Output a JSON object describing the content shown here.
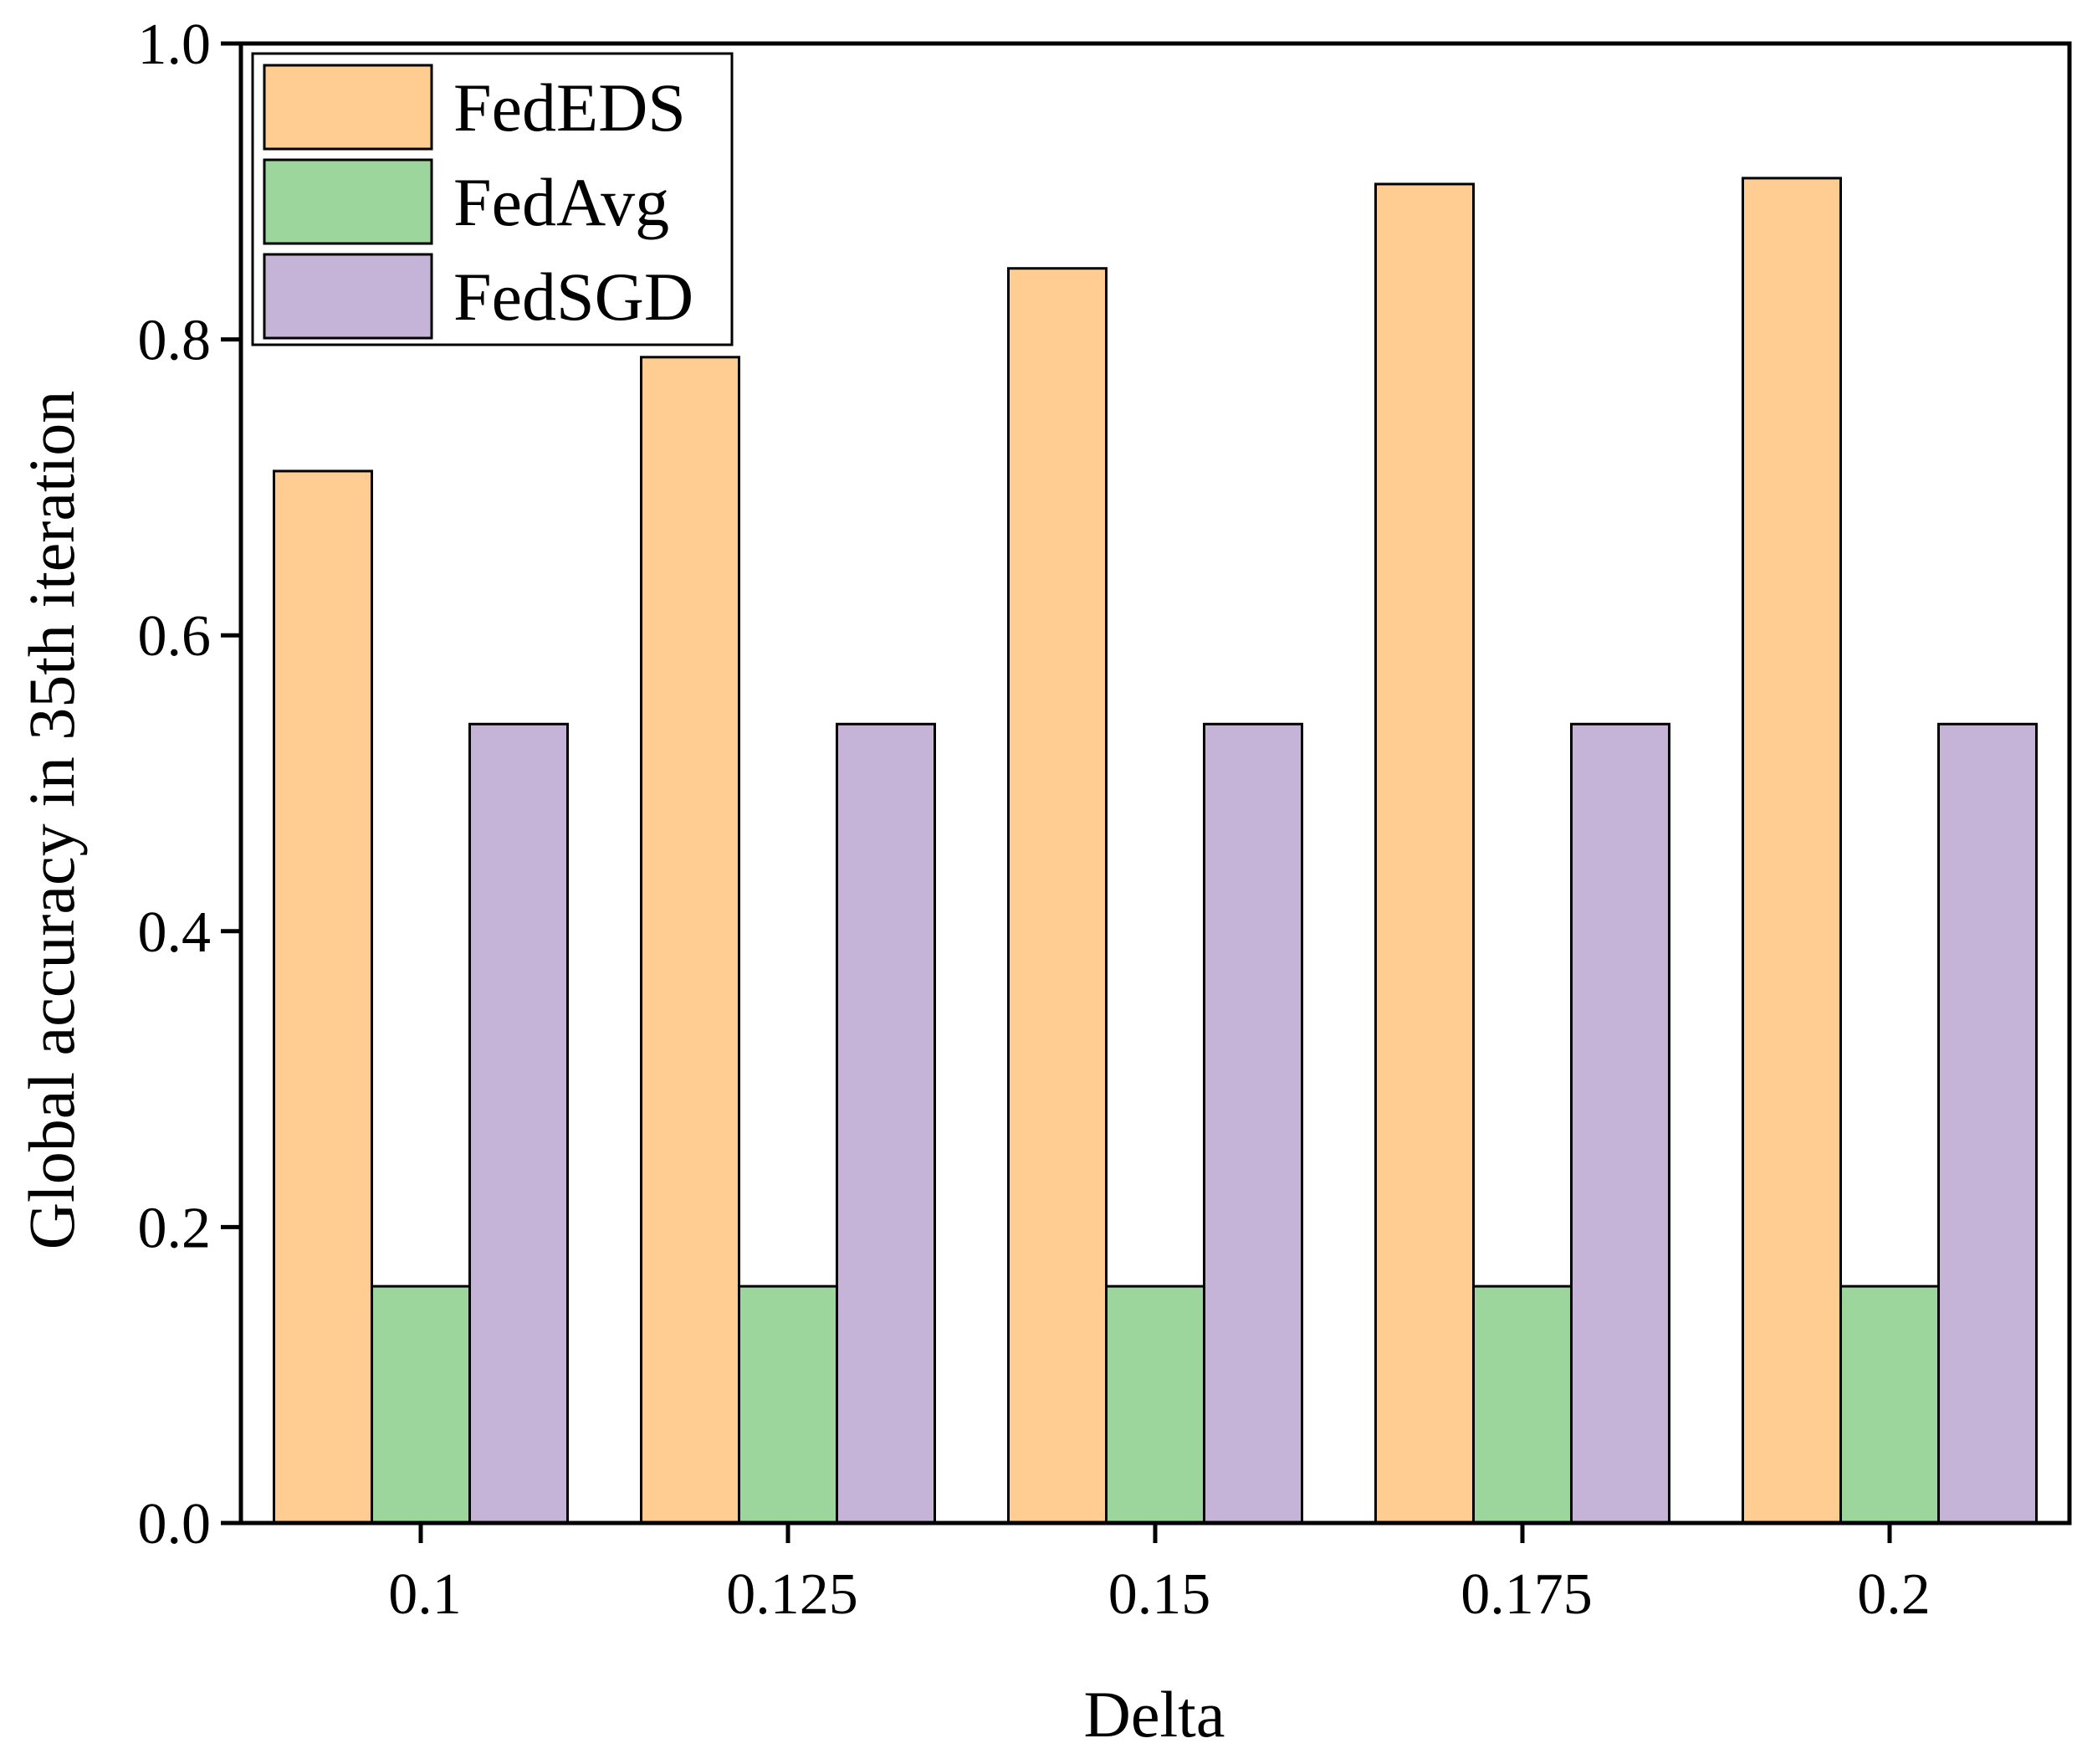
{
  "chart_data": {
    "type": "bar",
    "title": "",
    "xlabel": "Delta",
    "ylabel": "Global accuracy in 35th iteration",
    "categories": [
      "0.1",
      "0.125",
      "0.15",
      "0.175",
      "0.2"
    ],
    "series": [
      {
        "name": "FedEDS",
        "values": [
          0.711,
          0.788,
          0.848,
          0.905,
          0.909
        ],
        "color": "#FFCC92"
      },
      {
        "name": "FedAvg",
        "values": [
          0.16,
          0.16,
          0.16,
          0.16,
          0.16
        ],
        "color": "#9CD69C"
      },
      {
        "name": "FedSGD",
        "values": [
          0.54,
          0.54,
          0.54,
          0.54,
          0.54
        ],
        "color": "#C6B4D8"
      }
    ],
    "ylim": [
      0,
      1.0
    ],
    "yticks": [
      "0.0",
      "0.2",
      "0.4",
      "0.6",
      "0.8",
      "1.0"
    ],
    "legend_position": "top-left",
    "grid": false
  }
}
